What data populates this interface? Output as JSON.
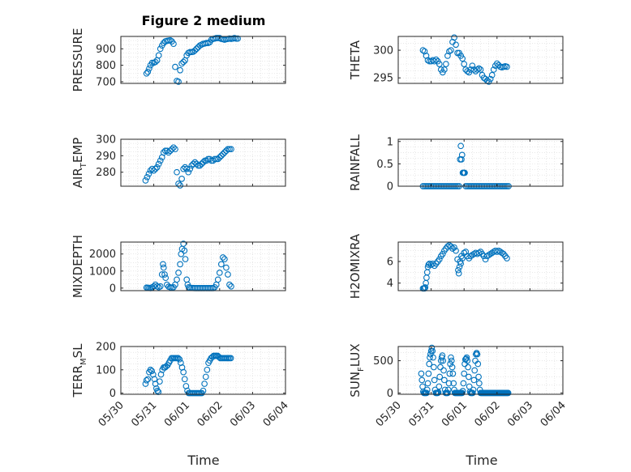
{
  "title": "Figure 2 medium",
  "xlabel": "Time",
  "x_tick_labels": [
    "05/30",
    "05/31",
    "06/01",
    "06/02",
    "06/03",
    "06/04"
  ],
  "marker_color": "#0072BD",
  "chart_data": [
    {
      "type": "scatter",
      "id": "pressure",
      "ylabel": "PRESSURE",
      "ylim": [
        690,
        975
      ],
      "yticks": [
        700,
        800,
        900
      ],
      "grid": true,
      "x": [
        0.78,
        0.82,
        0.86,
        0.9,
        0.95,
        1.0,
        1.05,
        1.1,
        1.15,
        1.2,
        1.25,
        1.3,
        1.35,
        1.4,
        1.45,
        1.5,
        1.55,
        1.6,
        1.65,
        1.7,
        1.75,
        1.8,
        1.85,
        1.9,
        1.95,
        2.0,
        2.05,
        2.1,
        2.15,
        2.2,
        2.25,
        2.3,
        2.35,
        2.4,
        2.45,
        2.5,
        2.55,
        2.6,
        2.65,
        2.7,
        2.75,
        2.8,
        2.85,
        2.9,
        2.95,
        3.0,
        3.05,
        3.1,
        3.15,
        3.2,
        3.25,
        3.3,
        3.35,
        3.4,
        3.45,
        3.5,
        3.55
      ],
      "y": [
        750,
        760,
        780,
        800,
        815,
        815,
        820,
        830,
        860,
        900,
        920,
        935,
        945,
        948,
        950,
        952,
        945,
        930,
        790,
        705,
        700,
        770,
        810,
        820,
        830,
        860,
        875,
        880,
        880,
        882,
        890,
        900,
        910,
        920,
        925,
        930,
        932,
        935,
        935,
        940,
        955,
        960,
        962,
        965,
        965,
        965,
        960,
        958,
        955,
        958,
        960,
        962,
        960,
        962,
        965,
        962,
        962
      ]
    },
    {
      "type": "scatter",
      "id": "theta",
      "ylabel": "THETA",
      "ylim": [
        294,
        302.5
      ],
      "yticks": [
        295,
        300
      ],
      "grid": true,
      "x": [
        0.75,
        0.8,
        0.85,
        0.9,
        0.95,
        1.0,
        1.05,
        1.1,
        1.15,
        1.2,
        1.25,
        1.3,
        1.35,
        1.4,
        1.45,
        1.5,
        1.55,
        1.6,
        1.65,
        1.7,
        1.75,
        1.8,
        1.85,
        1.9,
        1.95,
        2.0,
        2.05,
        2.1,
        2.15,
        2.2,
        2.25,
        2.3,
        2.35,
        2.4,
        2.45,
        2.5,
        2.55,
        2.6,
        2.65,
        2.7,
        2.75,
        2.8,
        2.85,
        2.9,
        2.95,
        3.0,
        3.05,
        3.1,
        3.15,
        3.2,
        3.25,
        3.3
      ],
      "y": [
        300.0,
        299.8,
        299.0,
        298.2,
        298.0,
        298.0,
        298.2,
        298.0,
        298.3,
        298.0,
        297.5,
        296.5,
        296.0,
        296.5,
        297.5,
        299.0,
        299.8,
        300.0,
        301.5,
        302.3,
        301.0,
        299.5,
        299.5,
        299.0,
        298.5,
        297.5,
        296.5,
        296.2,
        296.0,
        296.5,
        297.2,
        296.5,
        296.2,
        296.5,
        296.7,
        296.5,
        295.5,
        295.0,
        294.8,
        294.5,
        294.3,
        294.8,
        295.5,
        296.5,
        297.2,
        297.6,
        297.3,
        297.0,
        296.9,
        297.0,
        297.1,
        297.0
      ]
    },
    {
      "type": "scatter",
      "id": "air_temp",
      "ylabel": "AIR",
      "ylabel_sub": "T",
      "ylabel_suffix": "EMP",
      "ylim": [
        271.5,
        300
      ],
      "yticks": [
        280,
        290,
        300
      ],
      "grid": true,
      "x": [
        0.75,
        0.8,
        0.85,
        0.9,
        0.95,
        1.0,
        1.05,
        1.1,
        1.15,
        1.2,
        1.25,
        1.3,
        1.35,
        1.4,
        1.45,
        1.5,
        1.55,
        1.6,
        1.65,
        1.7,
        1.75,
        1.8,
        1.85,
        1.9,
        1.95,
        2.0,
        2.05,
        2.1,
        2.15,
        2.2,
        2.25,
        2.3,
        2.35,
        2.4,
        2.45,
        2.5,
        2.55,
        2.6,
        2.65,
        2.7,
        2.75,
        2.8,
        2.85,
        2.9,
        2.95,
        3.0,
        3.05,
        3.1,
        3.15,
        3.2,
        3.25,
        3.3,
        3.35
      ],
      "y": [
        275,
        277,
        279,
        281,
        282,
        281,
        282,
        283,
        285,
        287,
        289,
        292,
        293,
        293,
        292,
        293,
        294,
        295,
        294,
        280,
        273,
        272,
        276,
        282,
        283,
        282,
        280,
        282,
        284,
        285,
        286,
        285,
        284,
        284,
        285,
        286,
        287,
        287,
        288,
        288,
        287,
        287,
        288,
        288,
        288,
        289,
        290,
        291,
        292,
        293,
        294,
        294,
        294
      ]
    },
    {
      "type": "scatter",
      "id": "rainfall",
      "ylabel": "RAINFALL",
      "ylim": [
        0,
        1.05
      ],
      "yticks": [
        0,
        0.5,
        1
      ],
      "grid": true,
      "x": [
        0.75,
        0.8,
        0.85,
        0.9,
        0.95,
        1.0,
        1.05,
        1.1,
        1.15,
        1.2,
        1.25,
        1.3,
        1.35,
        1.4,
        1.45,
        1.5,
        1.55,
        1.6,
        1.65,
        1.7,
        1.75,
        1.8,
        1.85,
        1.88,
        1.9,
        1.92,
        1.94,
        1.96,
        1.98,
        2.0,
        2.02,
        2.05,
        2.1,
        2.15,
        2.2,
        2.25,
        2.3,
        2.35,
        2.4,
        2.45,
        2.5,
        2.55,
        2.6,
        2.65,
        2.7,
        2.75,
        2.8,
        2.85,
        2.9,
        2.95,
        3.0,
        3.05,
        3.1,
        3.15,
        3.2,
        3.25,
        3.3,
        3.35
      ],
      "y": [
        0,
        0,
        0,
        0,
        0,
        0,
        0,
        0,
        0,
        0,
        0,
        0,
        0,
        0,
        0,
        0,
        0,
        0,
        0,
        0,
        0,
        0,
        0,
        0.6,
        0.9,
        0.6,
        0.7,
        0.3,
        0.3,
        0.3,
        0.3,
        0,
        0,
        0,
        0,
        0,
        0,
        0,
        0,
        0,
        0,
        0,
        0,
        0,
        0,
        0,
        0,
        0,
        0,
        0,
        0,
        0,
        0,
        0,
        0,
        0,
        0,
        0
      ]
    },
    {
      "type": "scatter",
      "id": "mixdepth",
      "ylabel": "MIXDEPTH",
      "ylim": [
        -150,
        2700
      ],
      "yticks": [
        0,
        1000,
        2000
      ],
      "grid": true,
      "x": [
        0.78,
        0.82,
        0.86,
        0.9,
        0.95,
        1.0,
        1.05,
        1.1,
        1.15,
        1.2,
        1.25,
        1.28,
        1.3,
        1.33,
        1.36,
        1.4,
        1.45,
        1.5,
        1.55,
        1.6,
        1.65,
        1.7,
        1.75,
        1.8,
        1.83,
        1.86,
        1.9,
        1.93,
        1.96,
        2.0,
        2.03,
        2.06,
        2.1,
        2.15,
        2.2,
        2.25,
        2.3,
        2.35,
        2.4,
        2.45,
        2.5,
        2.55,
        2.6,
        2.65,
        2.7,
        2.75,
        2.8,
        2.85,
        2.9,
        2.95,
        3.0,
        3.05,
        3.1,
        3.15,
        3.2,
        3.25,
        3.3,
        3.35
      ],
      "y": [
        30,
        20,
        10,
        0,
        50,
        100,
        200,
        100,
        50,
        100,
        800,
        1400,
        1200,
        800,
        600,
        200,
        80,
        50,
        30,
        50,
        200,
        500,
        900,
        1400,
        2000,
        2300,
        2600,
        2200,
        1700,
        500,
        200,
        50,
        20,
        10,
        5,
        0,
        0,
        0,
        0,
        0,
        0,
        0,
        0,
        0,
        0,
        0,
        0,
        50,
        200,
        500,
        900,
        1400,
        1800,
        1700,
        1200,
        800,
        200,
        100
      ]
    },
    {
      "type": "scatter",
      "id": "h2omixra",
      "ylabel": "H2OMIXRA",
      "ylim": [
        3.3,
        7.8
      ],
      "yticks": [
        4,
        6
      ],
      "grid": true,
      "x": [
        0.75,
        0.78,
        0.8,
        0.82,
        0.84,
        0.86,
        0.88,
        0.9,
        0.92,
        0.95,
        1.0,
        1.05,
        1.1,
        1.15,
        1.2,
        1.25,
        1.3,
        1.35,
        1.4,
        1.45,
        1.5,
        1.55,
        1.6,
        1.65,
        1.7,
        1.75,
        1.8,
        1.82,
        1.84,
        1.86,
        1.88,
        1.9,
        1.92,
        1.95,
        2.0,
        2.05,
        2.1,
        2.15,
        2.2,
        2.25,
        2.3,
        2.35,
        2.4,
        2.45,
        2.5,
        2.55,
        2.6,
        2.65,
        2.7,
        2.75,
        2.8,
        2.85,
        2.9,
        2.95,
        3.0,
        3.05,
        3.1,
        3.15,
        3.2,
        3.25,
        3.3
      ],
      "y": [
        3.5,
        3.5,
        3.5,
        3.6,
        4.0,
        4.5,
        5.0,
        5.5,
        5.7,
        5.8,
        5.7,
        5.8,
        5.6,
        5.8,
        6.0,
        6.2,
        6.5,
        6.7,
        7.0,
        7.2,
        7.4,
        7.5,
        7.4,
        7.2,
        7.3,
        7.0,
        6.2,
        5.2,
        4.9,
        5.5,
        6.0,
        5.8,
        6.5,
        6.3,
        6.8,
        6.9,
        6.5,
        6.3,
        6.5,
        6.6,
        6.7,
        6.8,
        6.7,
        6.8,
        6.9,
        6.7,
        6.5,
        6.2,
        6.5,
        6.6,
        6.7,
        6.8,
        6.9,
        7.0,
        6.9,
        7.0,
        6.9,
        6.8,
        6.7,
        6.5,
        6.3
      ]
    },
    {
      "type": "scatter",
      "id": "terr_msl",
      "ylabel": "TERR",
      "ylabel_sub": "M",
      "ylabel_suffix": "SL",
      "ylim": [
        -5,
        200
      ],
      "yticks": [
        0,
        100,
        200
      ],
      "grid": true,
      "x": [
        0.75,
        0.78,
        0.82,
        0.86,
        0.9,
        0.94,
        0.98,
        1.02,
        1.05,
        1.08,
        1.11,
        1.14,
        1.18,
        1.22,
        1.26,
        1.3,
        1.34,
        1.38,
        1.42,
        1.46,
        1.5,
        1.54,
        1.58,
        1.62,
        1.66,
        1.7,
        1.74,
        1.78,
        1.82,
        1.86,
        1.9,
        1.94,
        1.98,
        2.02,
        2.06,
        2.1,
        2.14,
        2.18,
        2.22,
        2.26,
        2.3,
        2.34,
        2.38,
        2.42,
        2.46,
        2.5,
        2.54,
        2.58,
        2.62,
        2.66,
        2.7,
        2.74,
        2.78,
        2.82,
        2.86,
        2.9,
        2.94,
        2.98,
        3.02,
        3.06,
        3.1,
        3.14,
        3.18,
        3.22,
        3.26,
        3.3,
        3.34
      ],
      "y": [
        40,
        55,
        60,
        90,
        100,
        95,
        80,
        60,
        40,
        20,
        10,
        5,
        50,
        80,
        100,
        110,
        110,
        115,
        120,
        130,
        140,
        150,
        150,
        150,
        150,
        150,
        150,
        145,
        130,
        110,
        90,
        60,
        30,
        10,
        0,
        0,
        0,
        0,
        0,
        0,
        0,
        0,
        0,
        0,
        0,
        10,
        40,
        70,
        100,
        130,
        140,
        150,
        155,
        160,
        160,
        160,
        160,
        155,
        150,
        150,
        150,
        150,
        150,
        150,
        150,
        150,
        150
      ]
    },
    {
      "type": "scatter",
      "id": "sun_flux",
      "ylabel": "SUN",
      "ylabel_sub": "F",
      "ylabel_suffix": "LUX",
      "ylim": [
        -20,
        720
      ],
      "yticks": [
        0,
        500
      ],
      "grid": true,
      "x": [
        0.7,
        0.72,
        0.74,
        0.76,
        0.78,
        0.8,
        0.82,
        0.84,
        0.86,
        0.88,
        0.9,
        0.92,
        0.94,
        0.96,
        0.98,
        1.0,
        1.02,
        1.04,
        1.06,
        1.08,
        1.1,
        1.12,
        1.14,
        1.16,
        1.18,
        1.2,
        1.22,
        1.24,
        1.26,
        1.28,
        1.3,
        1.32,
        1.34,
        1.36,
        1.38,
        1.4,
        1.42,
        1.44,
        1.46,
        1.48,
        1.5,
        1.52,
        1.54,
        1.56,
        1.58,
        1.6,
        1.62,
        1.64,
        1.66,
        1.68,
        1.7,
        1.72,
        1.74,
        1.76,
        1.78,
        1.8,
        1.82,
        1.84,
        1.86,
        1.88,
        1.9,
        1.92,
        1.94,
        1.96,
        1.98,
        2.0,
        2.02,
        2.04,
        2.06,
        2.08,
        2.1,
        2.12,
        2.14,
        2.16,
        2.18,
        2.2,
        2.22,
        2.24,
        2.26,
        2.28,
        2.3,
        2.32,
        2.34,
        2.36,
        2.38,
        2.4,
        2.42,
        2.44,
        2.46,
        2.48,
        2.5,
        2.52,
        2.54,
        2.56,
        2.58,
        2.6,
        2.62,
        2.64,
        2.66,
        2.68,
        2.7,
        2.72,
        2.74,
        2.76,
        2.78,
        2.8,
        2.82,
        2.84,
        2.86,
        2.88,
        2.9,
        2.92,
        2.94,
        2.96,
        2.98,
        3.0,
        3.02,
        3.04,
        3.06,
        3.08,
        3.1,
        3.12,
        3.14,
        3.16,
        3.18,
        3.2,
        3.22,
        3.24,
        3.26,
        3.28,
        3.3,
        3.32,
        3.34
      ],
      "y": [
        300,
        200,
        100,
        20,
        0,
        0,
        0,
        0,
        0,
        50,
        150,
        300,
        450,
        550,
        600,
        650,
        700,
        650,
        550,
        400,
        200,
        50,
        0,
        0,
        0,
        0,
        10,
        100,
        250,
        400,
        500,
        550,
        580,
        500,
        350,
        200,
        50,
        0,
        0,
        0,
        0,
        50,
        150,
        300,
        450,
        550,
        500,
        400,
        300,
        150,
        50,
        0,
        0,
        0,
        0,
        0,
        0,
        0,
        0,
        0,
        0,
        0,
        0,
        30,
        150,
        300,
        450,
        520,
        530,
        550,
        500,
        400,
        250,
        100,
        20,
        0,
        0,
        0,
        0,
        50,
        200,
        350,
        500,
        600,
        620,
        600,
        450,
        250,
        150,
        50,
        0,
        0,
        0,
        0,
        0,
        0,
        0,
        0,
        0,
        0,
        0,
        0,
        0,
        0,
        0,
        0,
        0,
        0,
        0,
        0,
        0,
        0,
        0,
        0,
        0,
        0,
        0,
        0,
        0,
        0,
        0,
        0,
        0,
        0,
        0,
        0,
        0,
        0,
        0,
        0,
        0,
        0,
        0
      ]
    }
  ]
}
